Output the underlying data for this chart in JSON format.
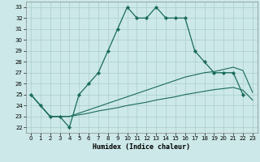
{
  "xlabel": "Humidex (Indice chaleur)",
  "x": [
    0,
    1,
    2,
    3,
    4,
    5,
    6,
    7,
    8,
    9,
    10,
    11,
    12,
    13,
    14,
    15,
    16,
    17,
    18,
    19,
    20,
    21,
    22,
    23
  ],
  "line1": [
    25,
    24,
    23,
    23,
    22,
    25,
    26,
    27,
    29,
    31,
    33,
    32,
    32,
    33,
    32,
    32,
    32,
    29,
    28,
    27,
    27,
    27,
    25,
    null
  ],
  "line3_x": [
    0,
    2,
    3,
    4,
    5,
    6,
    7,
    8,
    9,
    10,
    11,
    12,
    13,
    14,
    15,
    16,
    17,
    18,
    19,
    20,
    21,
    22,
    23
  ],
  "line3_y": [
    25,
    23,
    23,
    23,
    23.3,
    23.6,
    23.9,
    24.2,
    24.5,
    24.8,
    25.1,
    25.4,
    25.7,
    26.0,
    26.3,
    26.6,
    26.8,
    27.0,
    27.1,
    27.3,
    27.5,
    27.2,
    25.2
  ],
  "line4_x": [
    0,
    2,
    3,
    4,
    5,
    6,
    7,
    8,
    9,
    10,
    11,
    12,
    13,
    14,
    15,
    16,
    17,
    18,
    19,
    20,
    21,
    22,
    23
  ],
  "line4_y": [
    25,
    23,
    23,
    23,
    23.15,
    23.3,
    23.5,
    23.65,
    23.8,
    24.0,
    24.15,
    24.3,
    24.5,
    24.65,
    24.8,
    25.0,
    25.15,
    25.3,
    25.45,
    25.55,
    25.65,
    25.4,
    24.5
  ],
  "ylim": [
    21.5,
    33.5
  ],
  "xlim": [
    -0.5,
    23.5
  ],
  "yticks": [
    22,
    23,
    24,
    25,
    26,
    27,
    28,
    29,
    30,
    31,
    32,
    33
  ],
  "xticks": [
    0,
    1,
    2,
    3,
    4,
    5,
    6,
    7,
    8,
    9,
    10,
    11,
    12,
    13,
    14,
    15,
    16,
    17,
    18,
    19,
    20,
    21,
    22,
    23
  ],
  "bg_color": "#cce8e8",
  "grid_color": "#aacece",
  "line_color": "#1a6b5a",
  "marker": "D",
  "markersize": 2.2,
  "linewidth_main": 0.9,
  "linewidth_env": 0.8,
  "tick_labelsize": 5.0,
  "xlabel_fontsize": 6.0
}
